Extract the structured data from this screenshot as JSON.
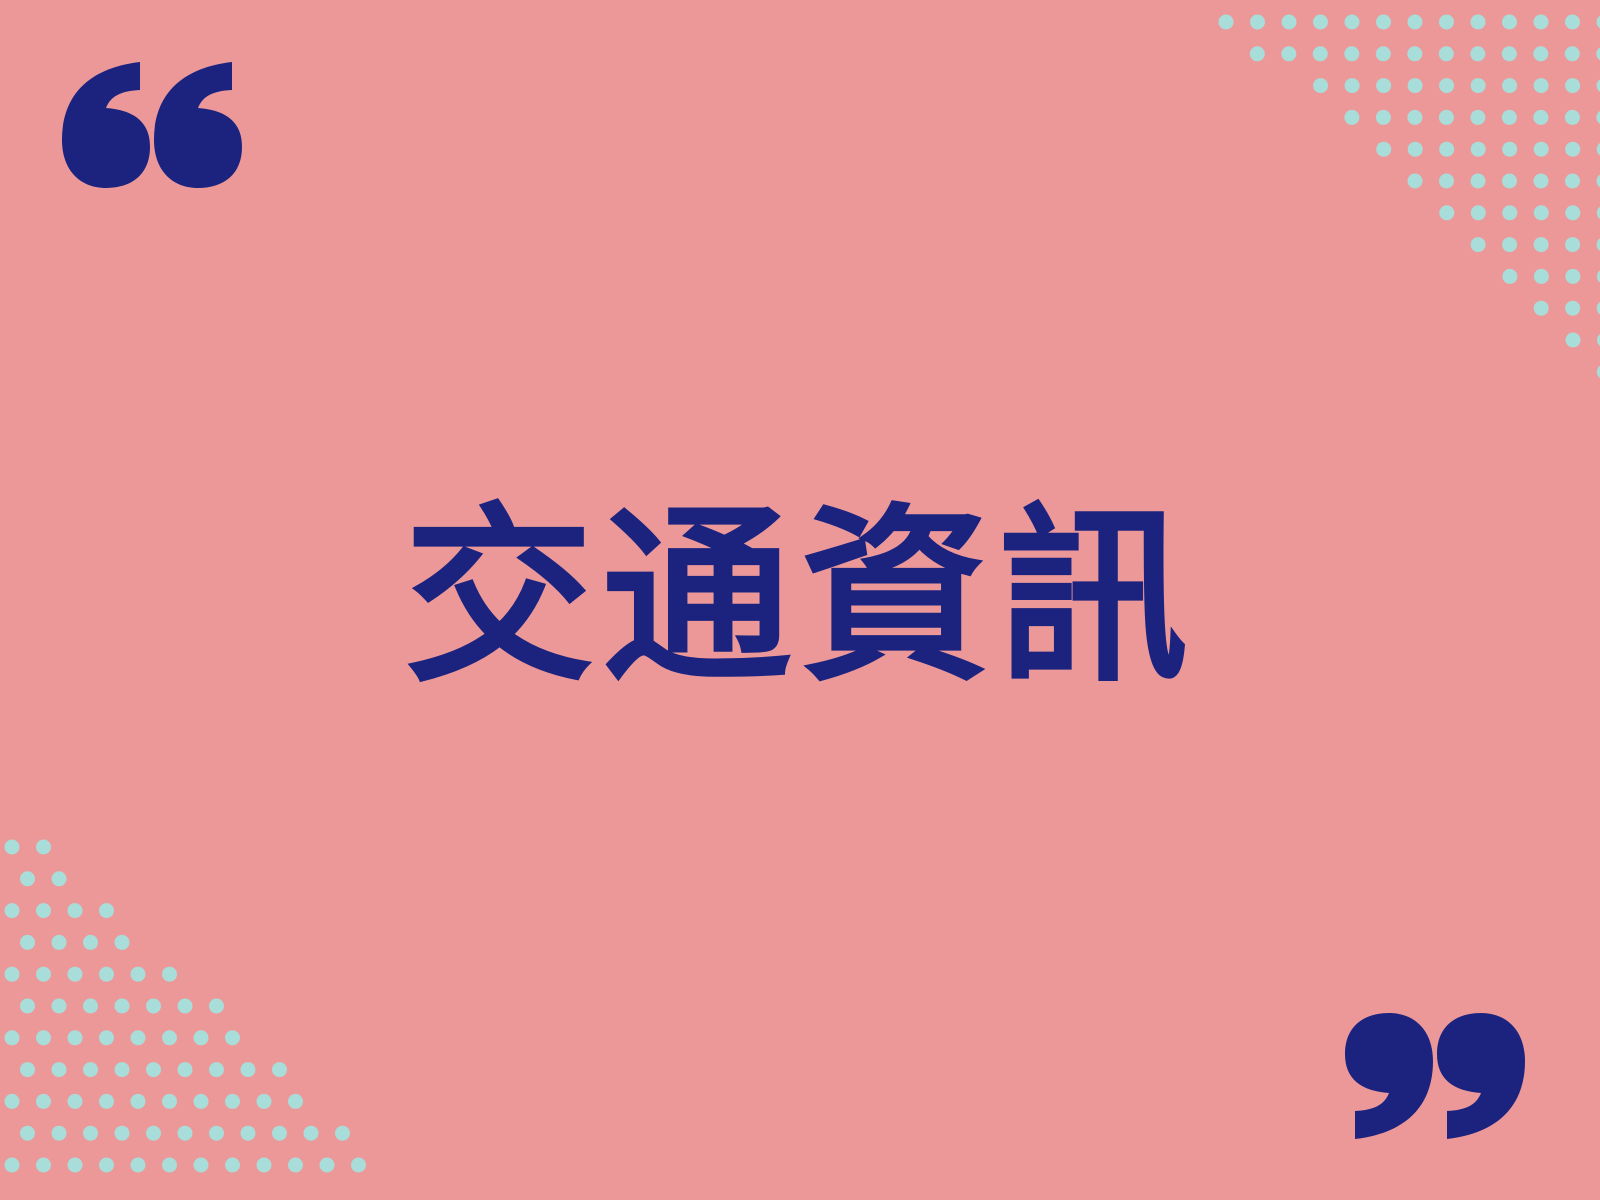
{
  "poster": {
    "headline": "交通資訊"
  },
  "colors": {
    "background": "#EC9899",
    "ink": "#1B237F",
    "dots": "#A8DDD9"
  },
  "icons": {
    "open_quote": "left-double-quote-icon",
    "close_quote": "right-double-quote-icon",
    "dots": "dot-pattern"
  }
}
